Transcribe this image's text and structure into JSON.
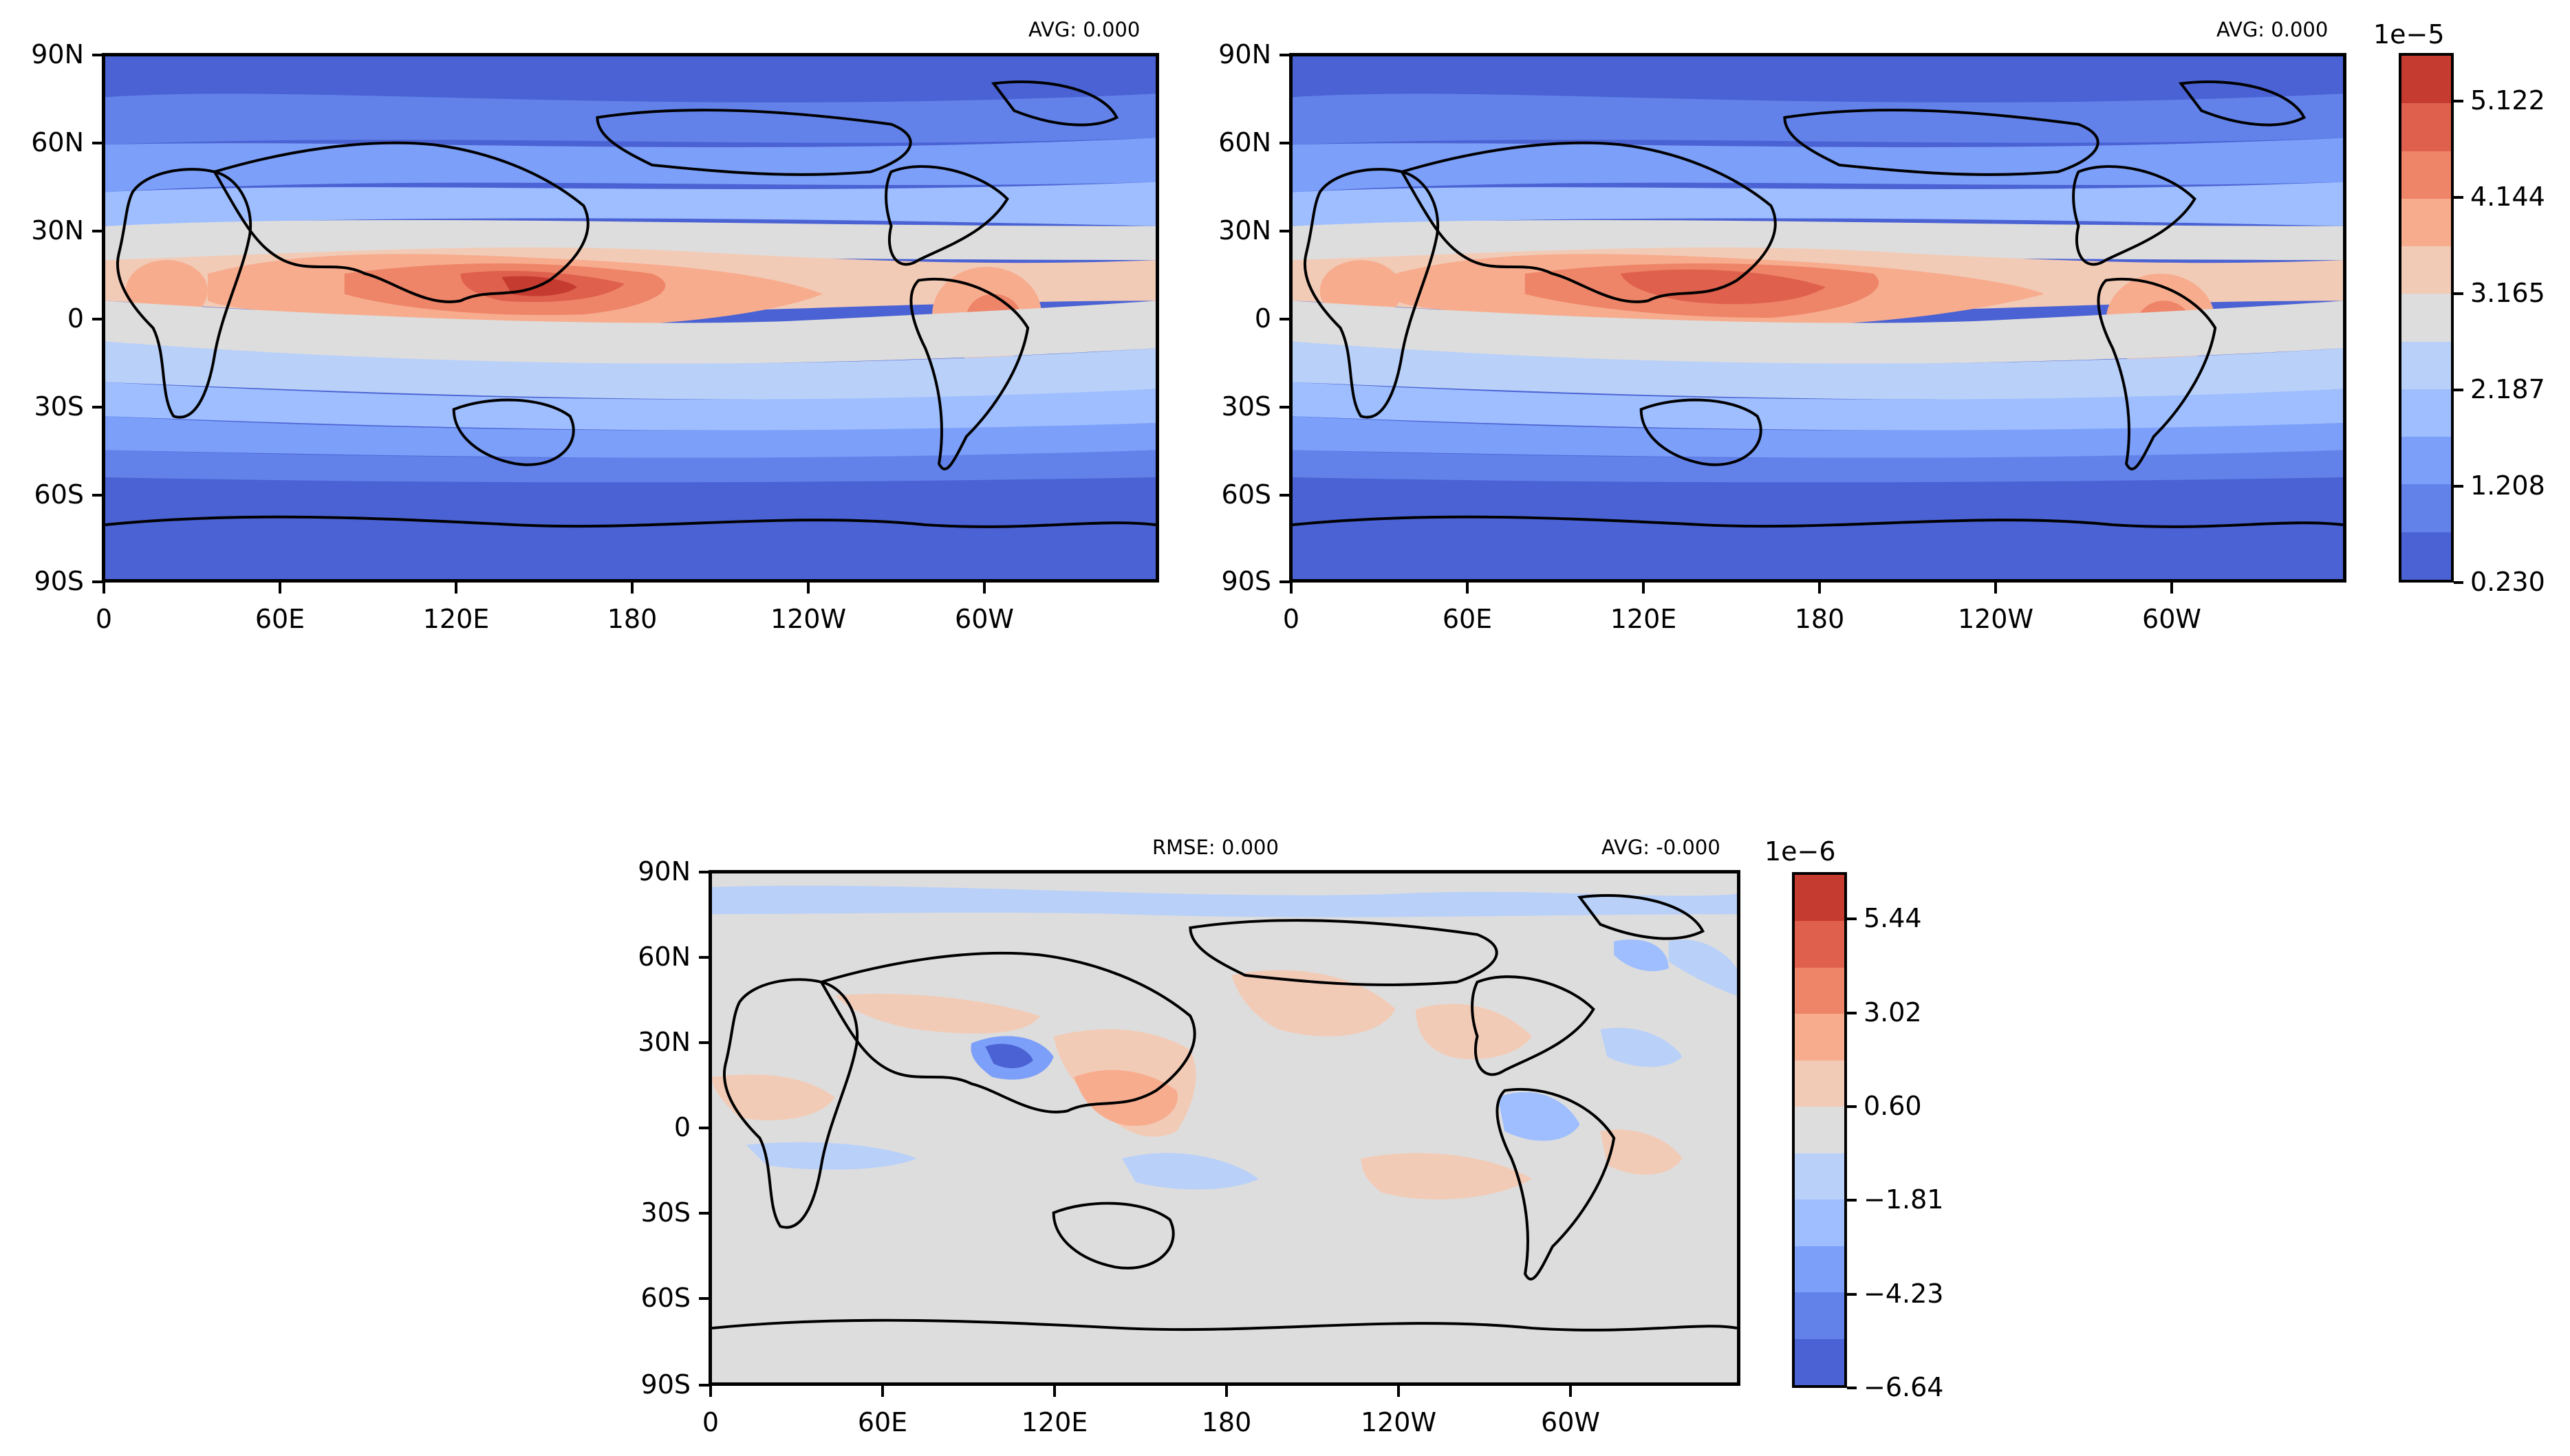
{
  "panels": [
    {
      "id": "panel-top-left",
      "avg_text": "AVG: 0.000",
      "rmse_text": ""
    },
    {
      "id": "panel-top-right",
      "avg_text": "AVG: 0.000",
      "rmse_text": ""
    },
    {
      "id": "panel-bottom-diff",
      "avg_text": "AVG: -0.000",
      "rmse_text": "RMSE: 0.000"
    }
  ],
  "lat_ticks": [
    "90N",
    "60N",
    "30N",
    "0",
    "30S",
    "60S",
    "90S"
  ],
  "lon_ticks": [
    "0",
    "60E",
    "120E",
    "180",
    "120W",
    "60W"
  ],
  "colorbar_top": {
    "exponent": "1e−5",
    "tick_labels": [
      "0.230",
      "1.208",
      "2.187",
      "3.165",
      "4.144",
      "5.122"
    ],
    "colors": [
      "#4a62d3",
      "#6282ea",
      "#7c9ff9",
      "#9ebeff",
      "#b9d0f9",
      "#dddddd",
      "#f2cbb7",
      "#f7ac8e",
      "#ee8468",
      "#de604d",
      "#c63b2f"
    ]
  },
  "colorbar_bottom": {
    "exponent": "1e−6",
    "tick_labels": [
      "−6.64",
      "−4.23",
      "−1.81",
      "0.60",
      "3.02",
      "5.44"
    ],
    "colors": [
      "#4a62d3",
      "#6282ea",
      "#7c9ff9",
      "#9ebeff",
      "#b9d0f9",
      "#dddddd",
      "#f2cbb7",
      "#f7ac8e",
      "#ee8468",
      "#de604d",
      "#c63b2f"
    ]
  },
  "colors": {
    "ocean_low": "#4a62d3",
    "mid_blue": "#7c9ff9",
    "neutral": "#dddddd",
    "warm": "#f2cbb7",
    "hot": "#c63b2f",
    "coastline": "#000000"
  }
}
